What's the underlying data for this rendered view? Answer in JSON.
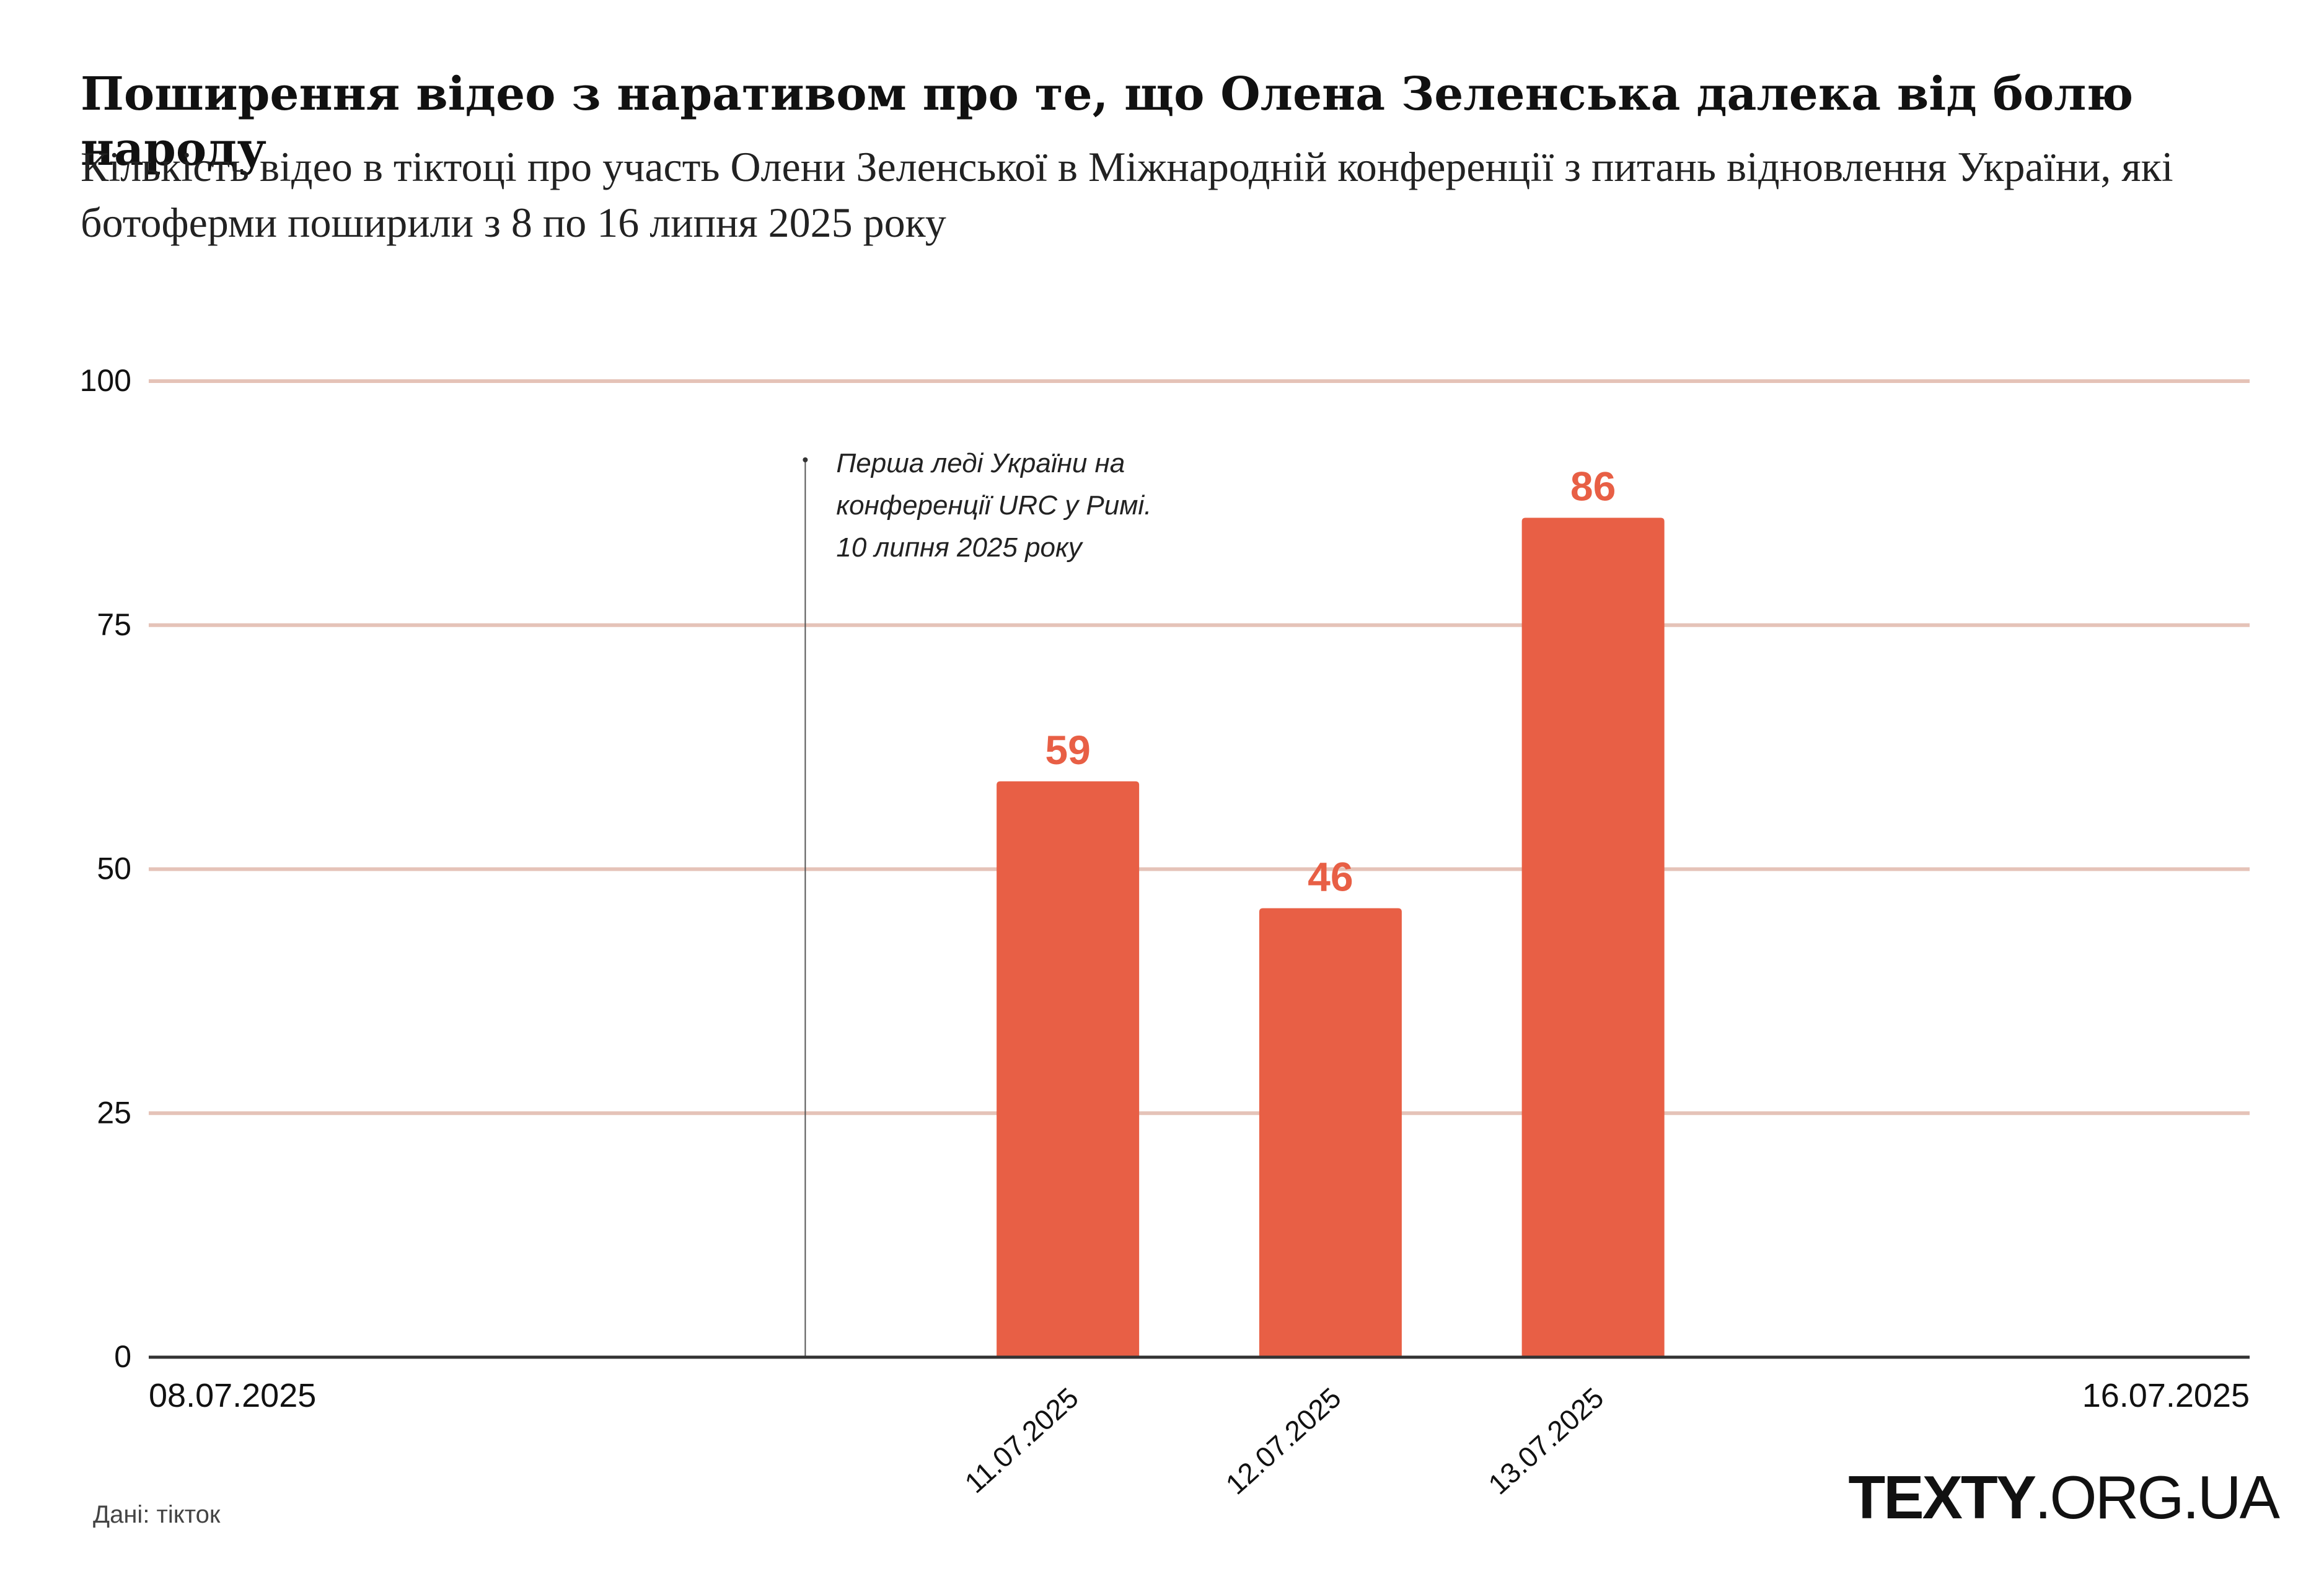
{
  "title": "Поширення відео з наративом про те, що Олена Зеленська далека від болю народу",
  "subtitle": "Кількість відео в тіктоці про участь Олени Зеленської в Міжнародній конференції з питань відновлення України, які ботоферми поширили з 8 по 16 липня 2025 року",
  "source": "Дані: тікток",
  "logo": {
    "bold": "TEXTY",
    "rest": ".ORG.UA"
  },
  "colors": {
    "bar": "#E85F45",
    "value_label": "#E85F45",
    "gridline": "#E5C3B8",
    "axis": "#333333",
    "text": "#111111"
  },
  "chart_data": {
    "type": "bar",
    "x_axis": {
      "type": "date",
      "domain": [
        "08.07.2025",
        "16.07.2025"
      ],
      "edge_labels": [
        "08.07.2025",
        "16.07.2025"
      ]
    },
    "categories": [
      "11.07.2025",
      "12.07.2025",
      "13.07.2025"
    ],
    "values": [
      59,
      46,
      86
    ],
    "ylim": [
      0,
      100
    ],
    "yticks": [
      0,
      25,
      50,
      75,
      100
    ],
    "grid": true,
    "data_labels": true,
    "annotation": {
      "x": "10.07.2025",
      "text": [
        "Перша леді України на",
        "конференції URC у Римі.",
        "10 липня 2025 року"
      ]
    }
  }
}
